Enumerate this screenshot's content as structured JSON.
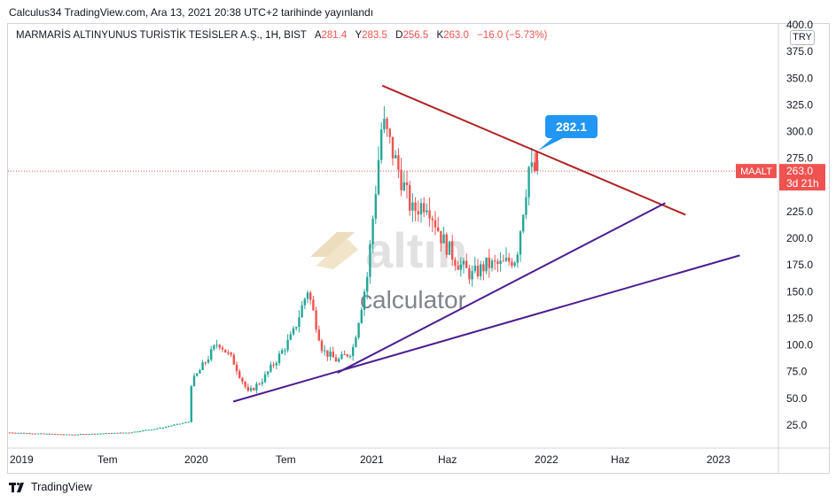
{
  "header": {
    "publish_line": "Calculus34 TradingView.com, Ara 13, 2021 20:38 UTC+2 tarihinde yayınlandı"
  },
  "legend": {
    "symbol_line": "MARMARİS ALTINYUNUS TURİSTİK TESİSLER A.Ş., 1H, BIST",
    "open_label": "A",
    "open": "281.4",
    "high_label": "Y",
    "high": "283.5",
    "low_label": "D",
    "low": "256.5",
    "close_label": "K",
    "close": "263.0",
    "change": "−16.0 (−5.73%)"
  },
  "currency_button": "TRY",
  "price_tag": {
    "ticker": "MAALT",
    "price": "263.0",
    "countdown": "3d 21h"
  },
  "callout": {
    "label": "282.1"
  },
  "watermark": {
    "brand": "altın",
    "sub": "calculator"
  },
  "footer": {
    "brand": "TradingView"
  },
  "colors": {
    "up": "#26a69a",
    "down": "#ef5350",
    "resistance_line": "#b22222",
    "support_lines": "#4b1d91",
    "callout_bg": "#2196f3",
    "price_tag_bg": "#ef5350"
  },
  "chart_data": {
    "type": "candlestick",
    "ylim": [
      15,
      405
    ],
    "y_ticks": [
      "400.0",
      "375.0",
      "350.0",
      "325.0",
      "300.0",
      "275.0",
      "250.0",
      "225.0",
      "200.0",
      "175.0",
      "150.0",
      "125.0",
      "100.0",
      "75.0",
      "50.0",
      "25.0"
    ],
    "x_ticks": [
      "2019",
      "Tem",
      "2020",
      "Tem",
      "2021",
      "Haz",
      "2022",
      "Haz",
      "2023"
    ],
    "last_price": 263.0,
    "price_path": [
      [
        "2019-01",
        18
      ],
      [
        "2019-03",
        17
      ],
      [
        "2019-05",
        16
      ],
      [
        "2019-07",
        17
      ],
      [
        "2019-09",
        18
      ],
      [
        "2019-11",
        22
      ],
      [
        "2020-01",
        28
      ],
      [
        "2020-01",
        60
      ],
      [
        "2020-03",
        103
      ],
      [
        "2020-04",
        85
      ],
      [
        "2020-05",
        55
      ],
      [
        "2020-06",
        68
      ],
      [
        "2020-07",
        88
      ],
      [
        "2020-08",
        110
      ],
      [
        "2020-09",
        152
      ],
      [
        "2020-10",
        95
      ],
      [
        "2020-11",
        85
      ],
      [
        "2020-12",
        95
      ],
      [
        "2021-01",
        165
      ],
      [
        "2021-02",
        310
      ],
      [
        "2021-03",
        268
      ],
      [
        "2021-04",
        225
      ],
      [
        "2021-05",
        235
      ],
      [
        "2021-06",
        200
      ],
      [
        "2021-07",
        178
      ],
      [
        "2021-08",
        165
      ],
      [
        "2021-09",
        175
      ],
      [
        "2021-10",
        175
      ],
      [
        "2021-11",
        182
      ],
      [
        "2021-12",
        282
      ],
      [
        "2021-12",
        263
      ]
    ],
    "trendlines": [
      {
        "name": "resistance",
        "from": [
          "2021-02",
          343
        ],
        "to": [
          "2022-10",
          222
        ]
      },
      {
        "name": "support-upper",
        "from": [
          "2020-11",
          74
        ],
        "to": [
          "2022-09",
          233
        ]
      },
      {
        "name": "support-lower",
        "from": [
          "2020-04",
          47
        ],
        "to": [
          "2023-02",
          184
        ]
      }
    ]
  }
}
